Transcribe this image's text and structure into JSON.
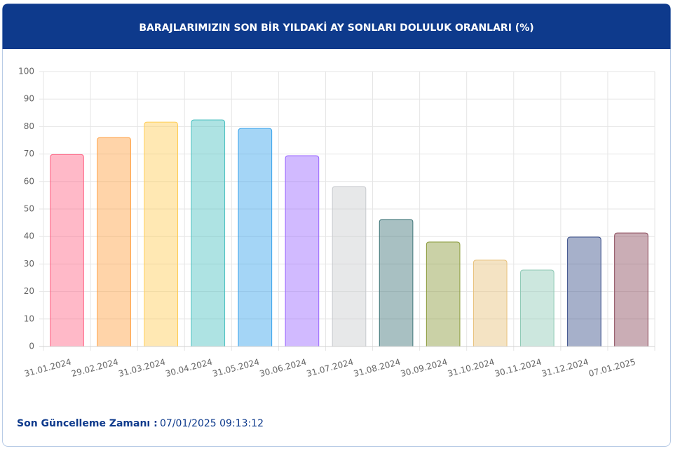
{
  "chart_data": {
    "type": "bar",
    "title": "BARAJLARIMIZIN SON BİR YILDAKİ AY SONLARI DOLULUK ORANLARI (%)",
    "categories": [
      "31.01.2024",
      "29.02.2024",
      "31.03.2024",
      "30.04.2024",
      "31.05.2024",
      "30.06.2024",
      "31.07.2024",
      "31.08.2024",
      "30.09.2024",
      "31.10.2024",
      "30.11.2024",
      "31.12.2024",
      "07.01.2025"
    ],
    "values": [
      69.8,
      76.0,
      81.6,
      82.4,
      79.3,
      69.4,
      58.2,
      46.2,
      38.0,
      31.4,
      27.8,
      39.8,
      41.3
    ],
    "colors": [
      "#ff6384",
      "#ff9f40",
      "#ffcd56",
      "#4bc0c0",
      "#36a2eb",
      "#9966ff",
      "#c9cbcf",
      "#3e7478",
      "#8a9a3a",
      "#e6c07a",
      "#8fc9b5",
      "#3a4f8a",
      "#8a4a5a"
    ],
    "ylim": [
      0,
      100
    ],
    "yticks": [
      0,
      10,
      20,
      30,
      40,
      50,
      60,
      70,
      80,
      90,
      100
    ],
    "grid": true
  },
  "footer": {
    "label": "Son Güncelleme Zamanı :",
    "value": "07/01/2025 09:13:12"
  }
}
